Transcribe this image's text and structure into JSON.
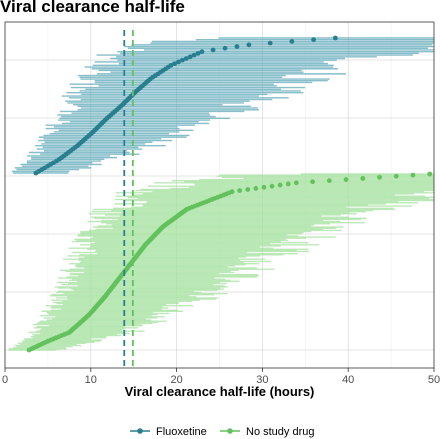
{
  "chart_data": {
    "type": "scatter",
    "title": "Viral clearance half-life",
    "xlabel": "Viral clearance half-life (hours)",
    "ylabel": "",
    "xlim": [
      0,
      50
    ],
    "xticks": [
      0,
      10,
      20,
      30,
      40,
      50
    ],
    "grid": true,
    "legend_position": "bottom",
    "y_tick_labels_visible": false,
    "series": [
      {
        "name": "Fluoxetine",
        "color": "#2a7f8f",
        "band_color": "#5ea8b8",
        "median_halflife": 13.9,
        "n_points": 80,
        "x_range": [
          3.6,
          38.5
        ]
      },
      {
        "name": "No study drug",
        "color": "#63c15e",
        "band_color": "#a7e2a0",
        "median_halflife": 14.9,
        "n_points": 160,
        "x_range": [
          2.8,
          49.5
        ]
      }
    ],
    "reference_lines": [
      {
        "series": "Fluoxetine",
        "x": 13.9,
        "style": "dashed"
      },
      {
        "series": "No study drug",
        "x": 14.9,
        "style": "dashed"
      }
    ]
  },
  "legend": {
    "items": [
      {
        "label": "Fluoxetine",
        "color": "#2a7f8f"
      },
      {
        "label": "No study drug",
        "color": "#63c15e"
      }
    ]
  }
}
